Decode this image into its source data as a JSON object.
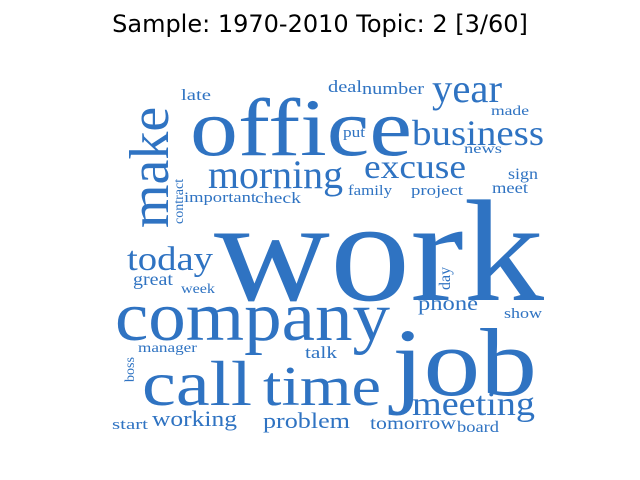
{
  "title": "Sample: 1970-2010 Topic: 2 [3/60]",
  "color": "#2f73c2",
  "words": [
    "work",
    "office",
    "company",
    "job",
    "make",
    "call",
    "time",
    "year",
    "business",
    "morning",
    "excuse",
    "meeting",
    "today",
    "phone",
    "working",
    "problem",
    "deal",
    "number",
    "late",
    "made",
    "put",
    "news",
    "sign",
    "meet",
    "family",
    "project",
    "contract",
    "important",
    "check",
    "day",
    "great",
    "week",
    "show",
    "manager",
    "talk",
    "boss",
    "start",
    "tomorrow",
    "board"
  ]
}
